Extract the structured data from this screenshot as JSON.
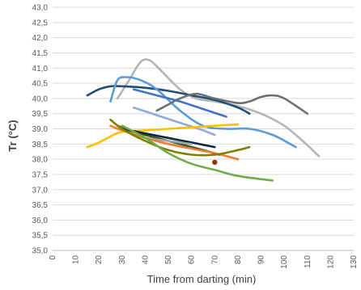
{
  "chart_data": {
    "type": "line",
    "xlabel": "Time from darting (min)",
    "ylabel": "Tr (°C)",
    "xlim": [
      0,
      130
    ],
    "ylim": [
      35.0,
      43.0
    ],
    "x_ticks": [
      "0",
      "10",
      "20",
      "30",
      "40",
      "50",
      "60",
      "70",
      "80",
      "90",
      "100",
      "110",
      "120",
      "130"
    ],
    "y_ticks": [
      "35,0",
      "35,5",
      "36,0",
      "36,5",
      "37,0",
      "37,5",
      "38,0",
      "38,5",
      "39,0",
      "39,5",
      "40,0",
      "40,5",
      "41,0",
      "41,5",
      "42,0",
      "42,5",
      "43,0"
    ],
    "grid": "horizontal",
    "legend": "none",
    "series": [
      {
        "color": "#b4b4b4",
        "x": [
          28,
          33,
          38,
          42,
          47,
          55,
          62,
          70,
          80,
          90,
          100,
          108,
          115
        ],
        "y": [
          40.0,
          40.6,
          41.2,
          41.25,
          40.9,
          40.3,
          40.0,
          39.9,
          39.75,
          39.5,
          39.1,
          38.6,
          38.1
        ]
      },
      {
        "color": "#1f4e79",
        "x": [
          15,
          20,
          25,
          30,
          40,
          50,
          60,
          70,
          80,
          85
        ],
        "y": [
          40.1,
          40.3,
          40.4,
          40.4,
          40.35,
          40.25,
          40.1,
          39.95,
          39.7,
          39.5
        ]
      },
      {
        "color": "#5b9bd5",
        "x": [
          25,
          28,
          32,
          38,
          45,
          55,
          65,
          75,
          85,
          95,
          105
        ],
        "y": [
          39.9,
          40.6,
          40.7,
          40.6,
          40.3,
          39.6,
          39.1,
          39.0,
          39.0,
          38.8,
          38.4
        ]
      },
      {
        "color": "#707070",
        "x": [
          45,
          50,
          55,
          62,
          70,
          80,
          85,
          90,
          95,
          100,
          110
        ],
        "y": [
          39.6,
          39.8,
          40.0,
          40.15,
          40.0,
          39.85,
          39.9,
          40.05,
          40.1,
          40.0,
          39.5
        ]
      },
      {
        "color": "#4472c4",
        "x": [
          35,
          45,
          55,
          65,
          75
        ],
        "y": [
          40.3,
          40.1,
          39.9,
          39.65,
          39.4
        ]
      },
      {
        "color": "#8faadc",
        "x": [
          35,
          45,
          55,
          65,
          70
        ],
        "y": [
          39.7,
          39.45,
          39.2,
          38.95,
          38.8
        ]
      },
      {
        "color": "#ffc000",
        "x": [
          15,
          20,
          25,
          30,
          40,
          50,
          60,
          70,
          80
        ],
        "y": [
          38.4,
          38.55,
          38.75,
          38.9,
          38.95,
          39.0,
          39.05,
          39.1,
          39.15
        ]
      },
      {
        "color": "#375623",
        "x": [
          28,
          35,
          45,
          55,
          65,
          72
        ],
        "y": [
          39.1,
          38.9,
          38.7,
          38.5,
          38.3,
          38.15
        ]
      },
      {
        "color": "#0e2841",
        "x": [
          30,
          40,
          50,
          60,
          70
        ],
        "y": [
          39.0,
          38.85,
          38.7,
          38.55,
          38.4
        ]
      },
      {
        "color": "#a5a5a5",
        "x": [
          40,
          50,
          60
        ],
        "y": [
          38.7,
          38.6,
          38.5
        ]
      },
      {
        "color": "#ed7d31",
        "x": [
          25,
          30,
          40,
          50,
          60,
          70,
          80
        ],
        "y": [
          39.1,
          38.95,
          38.7,
          38.5,
          38.35,
          38.2,
          38.0
        ]
      },
      {
        "color": "#7f7f00",
        "x": [
          25,
          30,
          40,
          50,
          60,
          70,
          80,
          85
        ],
        "y": [
          39.3,
          39.0,
          38.6,
          38.3,
          38.15,
          38.15,
          38.3,
          38.4
        ]
      },
      {
        "color": "#70ad47",
        "x": [
          30,
          40,
          50,
          60,
          70,
          80,
          95
        ],
        "y": [
          39.1,
          38.7,
          38.2,
          37.85,
          37.65,
          37.45,
          37.3
        ]
      }
    ],
    "points": [
      {
        "color": "#843c0c",
        "x": 70,
        "y": 37.9
      }
    ]
  }
}
